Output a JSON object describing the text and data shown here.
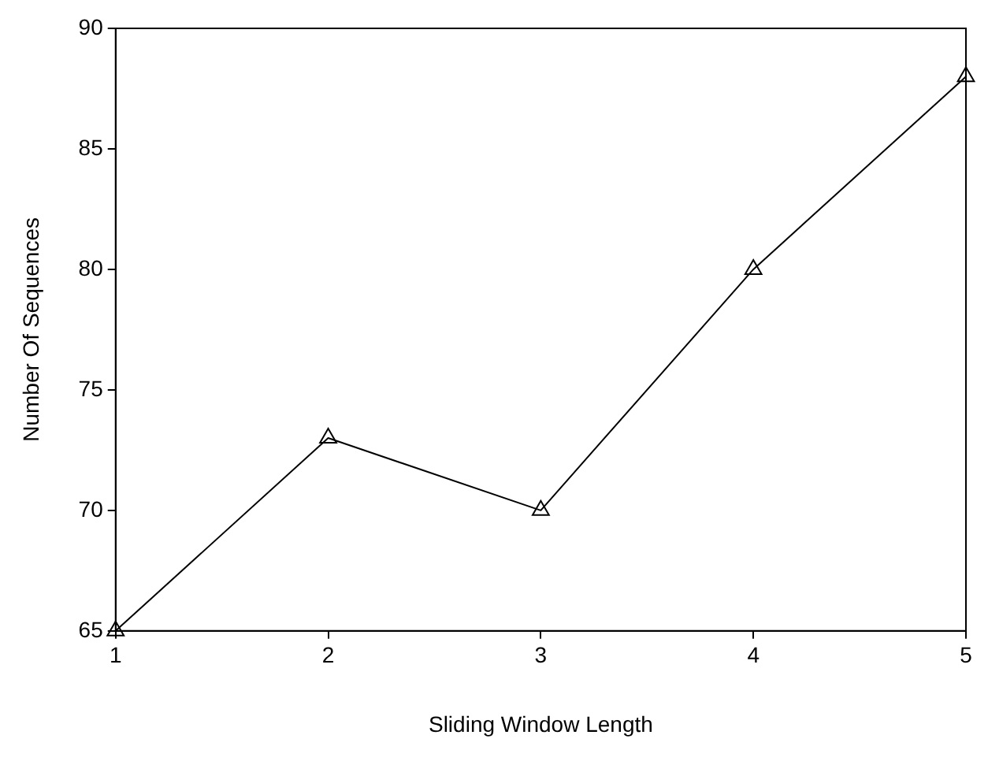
{
  "chart_data": {
    "type": "line",
    "xlabel": "Sliding Window Length",
    "ylabel": "Number Of Sequences",
    "x": [
      1,
      2,
      3,
      4,
      5
    ],
    "series": [
      {
        "color": "#000000",
        "values": [
          65,
          73,
          70,
          80,
          88
        ]
      }
    ],
    "xlim": [
      1,
      5
    ],
    "xticks": [
      1,
      2,
      3,
      4,
      5
    ],
    "ylim": [
      65,
      90
    ],
    "yticks": [
      65,
      70,
      75,
      80,
      85,
      90
    ],
    "marker": "triangle",
    "line_style": "solid",
    "grid": false,
    "legend": false
  }
}
